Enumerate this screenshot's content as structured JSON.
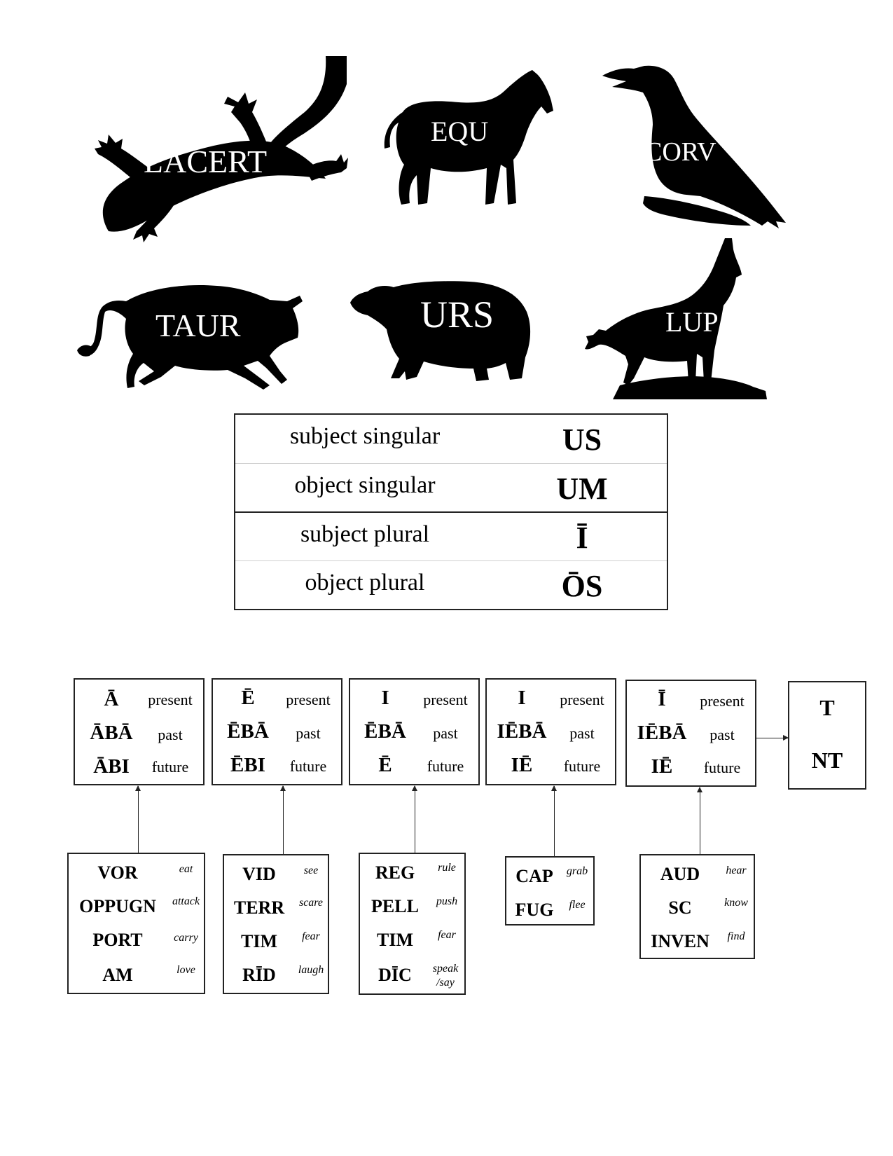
{
  "animals": [
    {
      "stem": "LACERT",
      "icon": "lizard-icon"
    },
    {
      "stem": "EQU",
      "icon": "horse-icon"
    },
    {
      "stem": "CORV",
      "icon": "raven-icon"
    },
    {
      "stem": "TAUR",
      "icon": "bull-icon"
    },
    {
      "stem": "URS",
      "icon": "bear-icon"
    },
    {
      "stem": "LUP",
      "icon": "wolf-icon"
    }
  ],
  "endings_table": {
    "rows": [
      {
        "label": "subject singular",
        "ending": "US"
      },
      {
        "label": "object singular",
        "ending": "UM"
      },
      {
        "label": "subject plural",
        "ending": "Ī"
      },
      {
        "label": "object plural",
        "ending": "ŌS"
      }
    ]
  },
  "tense_labels": {
    "present": "present",
    "past": "past",
    "future": "future"
  },
  "conjugations": [
    {
      "suffixes": [
        "Ā",
        "ĀBĀ",
        "ĀBI"
      ],
      "verbs": [
        {
          "stem": "VOR",
          "gloss": "eat"
        },
        {
          "stem": "OPPUGN",
          "gloss": "attack"
        },
        {
          "stem": "PORT",
          "gloss": "carry"
        },
        {
          "stem": "AM",
          "gloss": "love"
        }
      ]
    },
    {
      "suffixes": [
        "Ē",
        "ĒBĀ",
        "ĒBI"
      ],
      "verbs": [
        {
          "stem": "VID",
          "gloss": "see"
        },
        {
          "stem": "TERR",
          "gloss": "scare"
        },
        {
          "stem": "TIM",
          "gloss": "fear"
        },
        {
          "stem": "RĪD",
          "gloss": "laugh"
        }
      ]
    },
    {
      "suffixes": [
        "I",
        "ĒBĀ",
        "Ē"
      ],
      "verbs": [
        {
          "stem": "REG",
          "gloss": "rule"
        },
        {
          "stem": "PELL",
          "gloss": "push"
        },
        {
          "stem": "TIM",
          "gloss": "fear"
        },
        {
          "stem": "DĪC",
          "gloss": "speak /say"
        }
      ]
    },
    {
      "suffixes": [
        "I",
        "IĒBĀ",
        "IĒ"
      ],
      "verbs": [
        {
          "stem": "CAP",
          "gloss": "grab"
        },
        {
          "stem": "FUG",
          "gloss": "flee"
        }
      ]
    },
    {
      "suffixes": [
        "Ī",
        "IĒBĀ",
        "IĒ"
      ],
      "verbs": [
        {
          "stem": "AUD",
          "gloss": "hear"
        },
        {
          "stem": "SC",
          "gloss": "know"
        },
        {
          "stem": "INVEN",
          "gloss": "find"
        }
      ]
    }
  ],
  "person_endings": [
    "T",
    "NT"
  ]
}
